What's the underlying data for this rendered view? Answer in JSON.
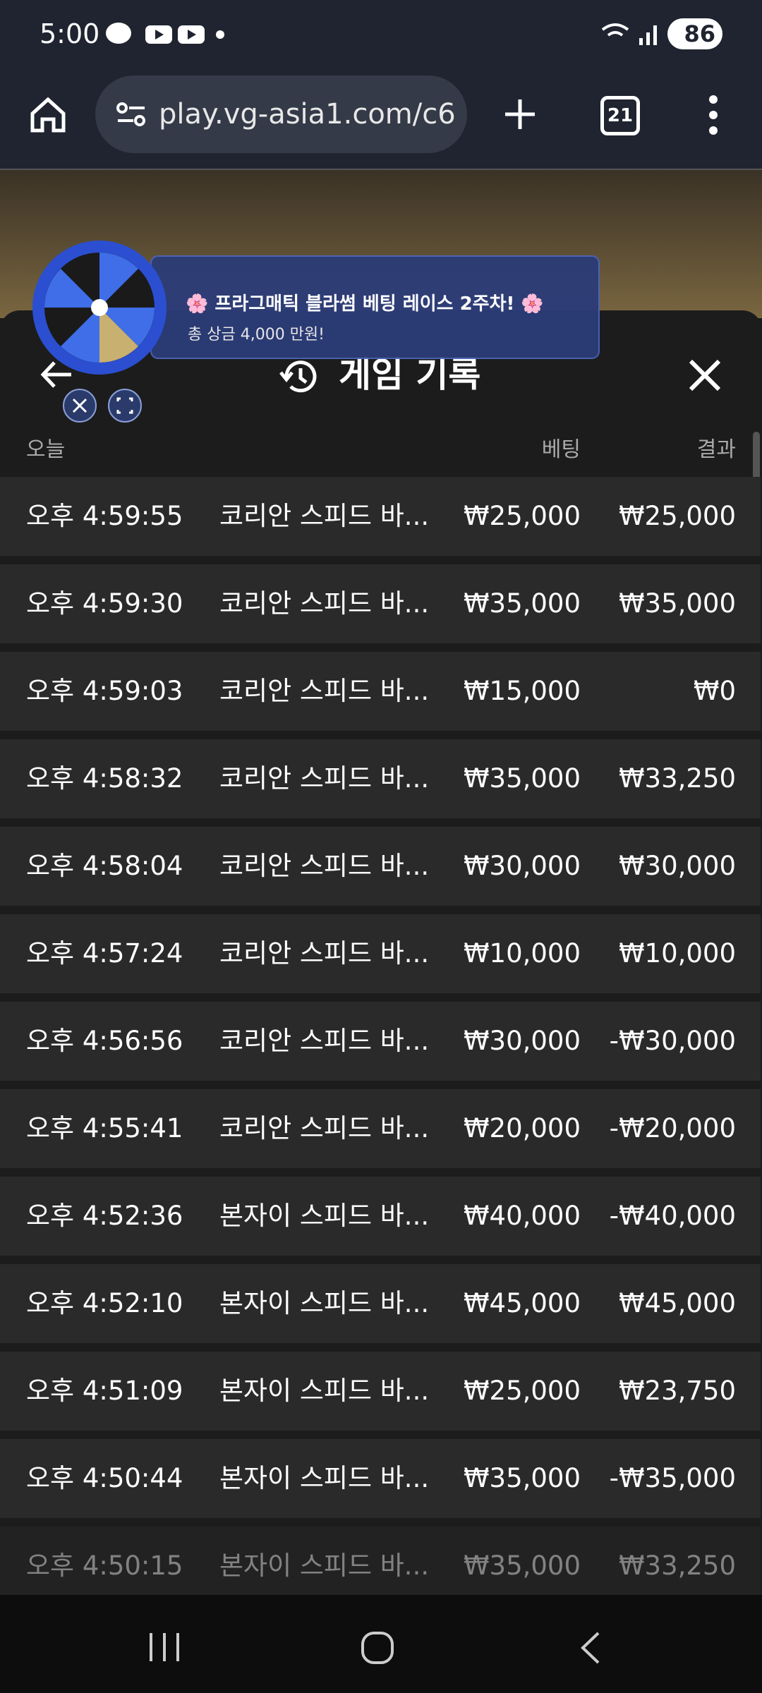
{
  "status_bar": {
    "time": "5:00",
    "battery": "86"
  },
  "browser": {
    "url": "play.vg-asia1.com/c6",
    "tab_count": "21"
  },
  "banner": {
    "title": "🌸 프라그매틱 블라썸 베팅 레이스 2주차! 🌸",
    "subtitle": "총 상금 4,000 만원!"
  },
  "panel": {
    "title": "게임 기록",
    "columns": {
      "date": "오늘",
      "bet": "베팅",
      "result": "결과"
    },
    "rows": [
      {
        "time": "오후 4:59:55",
        "game": "코리안 스피드 바...",
        "bet": "₩25,000",
        "result": "₩25,000"
      },
      {
        "time": "오후 4:59:30",
        "game": "코리안 스피드 바...",
        "bet": "₩35,000",
        "result": "₩35,000"
      },
      {
        "time": "오후 4:59:03",
        "game": "코리안 스피드 바...",
        "bet": "₩15,000",
        "result": "₩0"
      },
      {
        "time": "오후 4:58:32",
        "game": "코리안 스피드 바...",
        "bet": "₩35,000",
        "result": "₩33,250"
      },
      {
        "time": "오후 4:58:04",
        "game": "코리안 스피드 바...",
        "bet": "₩30,000",
        "result": "₩30,000"
      },
      {
        "time": "오후 4:57:24",
        "game": "코리안 스피드 바...",
        "bet": "₩10,000",
        "result": "₩10,000"
      },
      {
        "time": "오후 4:56:56",
        "game": "코리안 스피드 바...",
        "bet": "₩30,000",
        "result": "-₩30,000"
      },
      {
        "time": "오후 4:55:41",
        "game": "코리안 스피드 바...",
        "bet": "₩20,000",
        "result": "-₩20,000"
      },
      {
        "time": "오후 4:52:36",
        "game": "본자이 스피드 바...",
        "bet": "₩40,000",
        "result": "-₩40,000"
      },
      {
        "time": "오후 4:52:10",
        "game": "본자이 스피드 바...",
        "bet": "₩45,000",
        "result": "₩45,000"
      },
      {
        "time": "오후 4:51:09",
        "game": "본자이 스피드 바...",
        "bet": "₩25,000",
        "result": "₩23,750"
      },
      {
        "time": "오후 4:50:44",
        "game": "본자이 스피드 바...",
        "bet": "₩35,000",
        "result": "-₩35,000"
      },
      {
        "time": "오후 4:50:15",
        "game": "본자이 스피드 바...",
        "bet": "₩35,000",
        "result": "₩33,250"
      }
    ]
  }
}
